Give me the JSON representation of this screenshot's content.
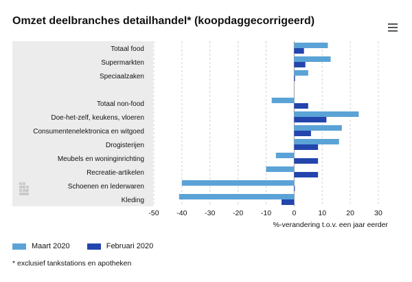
{
  "header": {
    "title": "Omzet deelbranches detailhandel* (koopdaggecorrigeerd)",
    "menu_icon": "hamburger-menu-icon"
  },
  "footnote": "* exclusief tankstations en apotheken",
  "colors": {
    "maart": "#5ba3d6",
    "februari": "#2345ad",
    "label_panel": "#ececec",
    "grid": "#d0d0d0"
  },
  "chart_data": {
    "type": "bar",
    "orientation": "horizontal",
    "title": "Omzet deelbranches detailhandel* (koopdaggecorrigeerd)",
    "xlabel": "%-verandering t.o.v. een jaar eerder",
    "xlim": [
      -50,
      30
    ],
    "xticks": [
      "-50",
      "-40",
      "-30",
      "-20",
      "-10",
      "0",
      "10",
      "20",
      "30"
    ],
    "categories": [
      "Totaal food",
      "Supermarkten",
      "Speciaalzaken",
      "",
      "Totaal non-food",
      "Doe-het-zelf, keukens, vloeren",
      "Consumentenelektronica en witgoed",
      "Drogisterijen",
      "Meubels en woninginrichting",
      "Recreatie-artikelen",
      "Schoenen en lederwaren",
      "Kleding"
    ],
    "series": [
      {
        "name": "Maart 2020",
        "color": "#5ba3d6",
        "values": [
          12,
          13,
          5,
          null,
          -8,
          23,
          17,
          16,
          -6.5,
          -10,
          -40,
          -41
        ]
      },
      {
        "name": "Februari 2020",
        "color": "#2345ad",
        "values": [
          3.5,
          4,
          0.3,
          null,
          5,
          11.5,
          6,
          8.5,
          8.5,
          8.5,
          0,
          -4.5
        ]
      }
    ],
    "grid": true,
    "legend_position": "bottom-left"
  }
}
